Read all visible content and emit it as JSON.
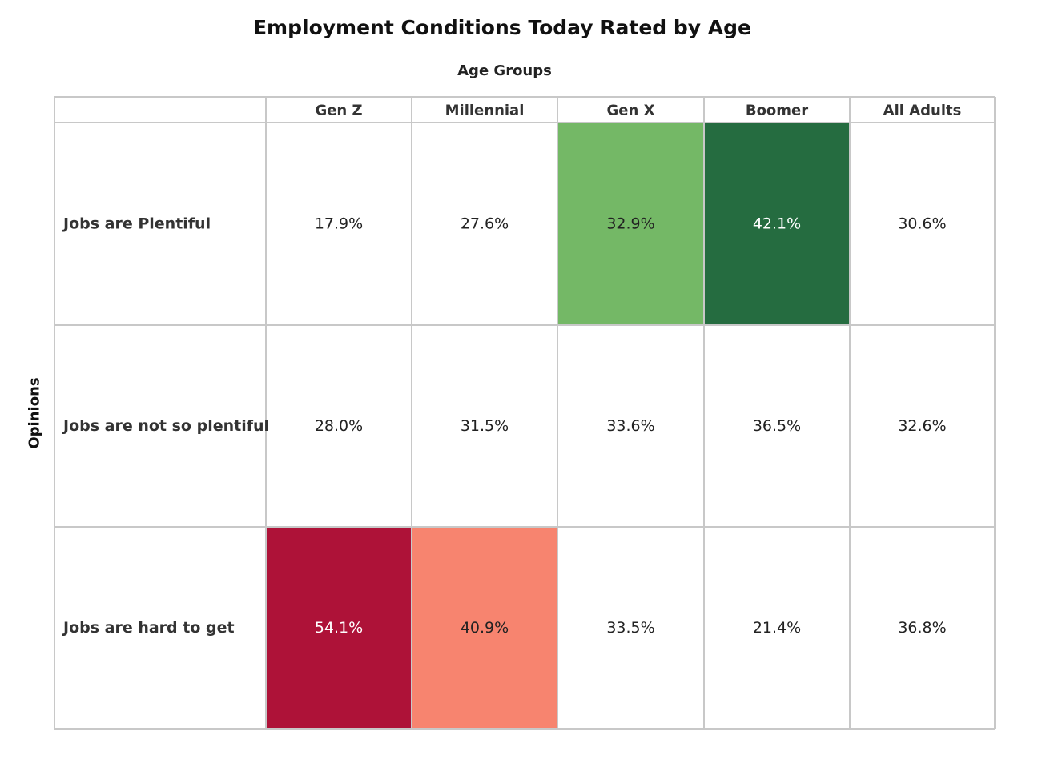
{
  "chart_data": {
    "type": "heatmap",
    "title": "Employment Conditions Today Rated by Age",
    "xlabel": "Age Groups",
    "ylabel": "Opinions",
    "columns": [
      "Gen Z",
      "Millennial",
      "Gen X",
      "Boomer",
      "All Adults"
    ],
    "rows": [
      "Jobs are Plentiful",
      "Jobs are not so plentiful",
      "Jobs are hard to get"
    ],
    "values": [
      [
        17.9,
        27.6,
        32.9,
        42.1,
        30.6
      ],
      [
        28.0,
        31.5,
        33.6,
        36.5,
        32.6
      ],
      [
        54.1,
        40.9,
        33.5,
        21.4,
        36.8
      ]
    ],
    "value_labels": [
      [
        "17.9%",
        "27.6%",
        "32.9%",
        "42.1%",
        "30.6%"
      ],
      [
        "28.0%",
        "31.5%",
        "33.6%",
        "36.5%",
        "32.6%"
      ],
      [
        "54.1%",
        "40.9%",
        "33.5%",
        "21.4%",
        "36.8%"
      ]
    ],
    "highlights": [
      {
        "row": 0,
        "col": 2,
        "color": "#74b866",
        "text_color": "#222222"
      },
      {
        "row": 0,
        "col": 3,
        "color": "#256c40",
        "text_color": "#ffffff"
      },
      {
        "row": 2,
        "col": 0,
        "color": "#ae1238",
        "text_color": "#ffffff"
      },
      {
        "row": 2,
        "col": 1,
        "color": "#f7846f",
        "text_color": "#222222"
      }
    ],
    "default_cell_color": "#ffffff",
    "default_text_color": "#222222",
    "grid_color": "#c8c8c8"
  }
}
